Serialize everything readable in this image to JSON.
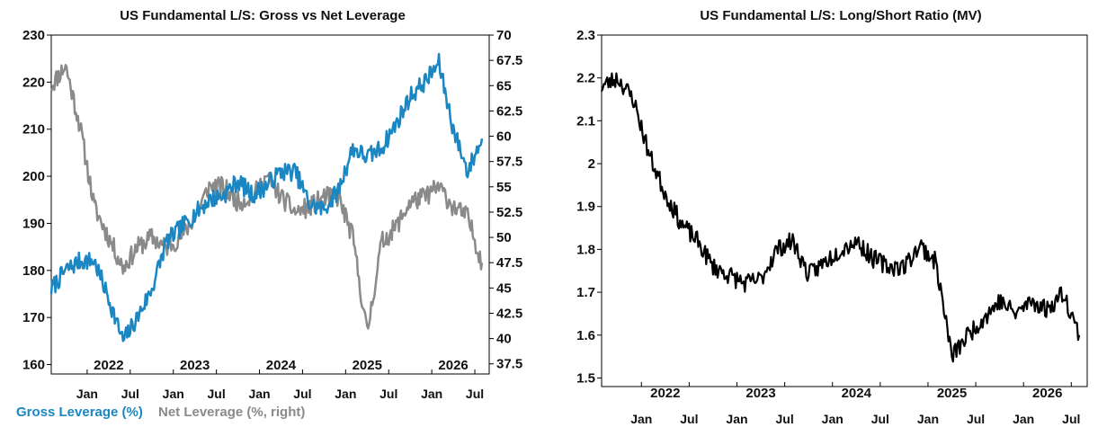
{
  "colors": {
    "gross": "#1a86c2",
    "net": "#8a8a8a",
    "ratio": "#000000",
    "axis": "#000000"
  },
  "chart_data": [
    {
      "type": "line",
      "title": "US Fundamental L/S: Gross vs Net Leverage",
      "x_month_labels": [
        "Jan",
        "Jul",
        "Jan",
        "Jul",
        "Jan",
        "Jul",
        "Jan",
        "Jul",
        "Jan",
        "Jul"
      ],
      "x_year_labels": [
        "2022",
        "2023",
        "2024",
        "2025",
        "2026"
      ],
      "x_range": [
        "2021-08",
        "2026-09"
      ],
      "y_left": {
        "ticks": [
          "160",
          "170",
          "180",
          "190",
          "200",
          "210",
          "220",
          "230"
        ],
        "lim": [
          158,
          230
        ]
      },
      "y_right": {
        "ticks": [
          "37.5",
          "40",
          "42.5",
          "45",
          "47.5",
          "50",
          "52.5",
          "55",
          "57.5",
          "60",
          "62.5",
          "65",
          "67.5",
          "70"
        ],
        "lim": [
          36.5,
          70
        ]
      },
      "legend": [
        {
          "label": "Gross Leverage (%)",
          "color": "#1a86c2"
        },
        {
          "label": "Net Leverage (%, right)",
          "color": "#8a8a8a"
        }
      ],
      "series": [
        {
          "name": "Gross Leverage (%)",
          "axis": "left",
          "x": [
            "2021-08",
            "2021-10",
            "2021-12",
            "2022-02",
            "2022-04",
            "2022-06",
            "2022-08",
            "2022-10",
            "2022-12",
            "2023-02",
            "2023-04",
            "2023-06",
            "2023-08",
            "2023-10",
            "2023-12",
            "2024-02",
            "2024-04",
            "2024-06",
            "2024-08",
            "2024-10",
            "2024-12",
            "2025-02",
            "2025-04",
            "2025-06",
            "2025-08",
            "2025-10",
            "2025-12",
            "2026-02",
            "2026-04",
            "2026-06",
            "2026-08"
          ],
          "values": [
            176,
            180,
            182,
            182,
            174,
            165,
            170,
            176,
            186,
            189,
            192,
            195,
            196,
            199,
            196,
            198,
            201,
            201,
            194,
            193,
            197,
            206,
            204,
            206,
            211,
            217,
            220,
            224,
            210,
            201,
            208
          ]
        },
        {
          "name": "Net Leverage (%, right)",
          "axis": "right",
          "x": [
            "2021-08",
            "2021-10",
            "2021-12",
            "2022-02",
            "2022-04",
            "2022-06",
            "2022-08",
            "2022-10",
            "2022-12",
            "2023-02",
            "2023-04",
            "2023-06",
            "2023-08",
            "2023-10",
            "2023-12",
            "2024-02",
            "2024-04",
            "2024-06",
            "2024-08",
            "2024-10",
            "2024-12",
            "2025-02",
            "2025-04",
            "2025-06",
            "2025-08",
            "2025-10",
            "2025-12",
            "2026-02",
            "2026-04",
            "2026-06",
            "2026-08"
          ],
          "values": [
            65,
            67,
            61,
            53,
            50,
            47,
            49,
            50,
            49,
            50,
            52,
            55,
            55,
            53.5,
            54,
            56,
            54,
            52.5,
            53,
            54,
            54,
            50,
            40.5,
            49.5,
            51,
            53.5,
            54,
            55,
            53,
            52,
            47.5
          ]
        }
      ]
    },
    {
      "type": "line",
      "title": "US Fundamental L/S: Long/Short Ratio (MV)",
      "x_month_labels": [
        "Jan",
        "Jul",
        "Jan",
        "Jul",
        "Jan",
        "Jul",
        "Jan",
        "Jul",
        "Jan",
        "Jul"
      ],
      "x_year_labels": [
        "2022",
        "2023",
        "2024",
        "2025",
        "2026"
      ],
      "x_range": [
        "2021-08",
        "2026-09"
      ],
      "y": {
        "ticks": [
          "1.5",
          "1.6",
          "1.7",
          "1.8",
          "1.9",
          "2",
          "2.1",
          "2.2",
          "2.3"
        ],
        "lim": [
          1.48,
          2.3
        ]
      },
      "series": [
        {
          "name": "",
          "axis": "left",
          "x": [
            "2021-08",
            "2021-10",
            "2021-12",
            "2022-02",
            "2022-04",
            "2022-06",
            "2022-08",
            "2022-10",
            "2022-12",
            "2023-02",
            "2023-04",
            "2023-06",
            "2023-08",
            "2023-10",
            "2023-12",
            "2024-02",
            "2024-04",
            "2024-06",
            "2024-08",
            "2024-10",
            "2024-12",
            "2025-02",
            "2025-04",
            "2025-06",
            "2025-08",
            "2025-10",
            "2025-12",
            "2026-02",
            "2026-04",
            "2026-06",
            "2026-08"
          ],
          "values": [
            2.18,
            2.2,
            2.15,
            2.02,
            1.93,
            1.86,
            1.82,
            1.76,
            1.74,
            1.72,
            1.73,
            1.8,
            1.82,
            1.74,
            1.77,
            1.8,
            1.82,
            1.78,
            1.76,
            1.76,
            1.81,
            1.77,
            1.55,
            1.6,
            1.64,
            1.68,
            1.65,
            1.68,
            1.66,
            1.7,
            1.6
          ]
        }
      ]
    }
  ]
}
